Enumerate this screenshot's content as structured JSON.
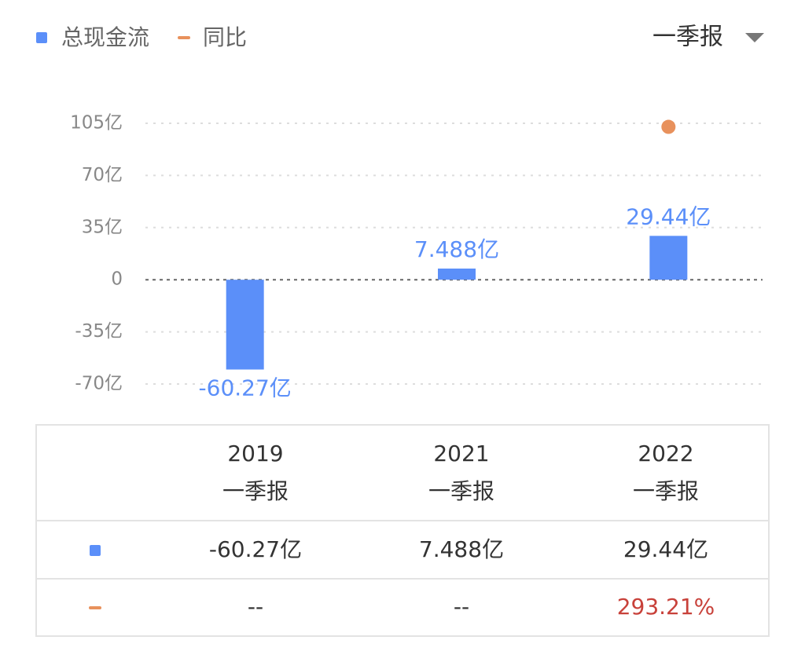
{
  "period": "一季报",
  "chart_data": {
    "type": "bar",
    "categories": [
      "2019",
      "2021",
      "2022"
    ],
    "series": [
      {
        "name": "总现金流",
        "type": "bar",
        "color": "#5b8ff9",
        "values": [
          -60.27,
          7.488,
          29.44
        ],
        "value_labels": [
          "-60.27亿",
          "7.488亿",
          "29.44亿"
        ]
      },
      {
        "name": "同比",
        "type": "scatter",
        "color": "#e8915c",
        "axis": "y2",
        "values": [
          null,
          null,
          293.21
        ]
      }
    ],
    "ylim": [
      -70,
      105
    ],
    "yticks": [
      {
        "value": -70,
        "label": "-70亿"
      },
      {
        "value": -35,
        "label": "-35亿"
      },
      0,
      {
        "value": 35,
        "label": "35亿"
      },
      {
        "value": 70,
        "label": "70亿"
      },
      {
        "value": 105,
        "label": "105亿"
      }
    ],
    "y2lim": [
      -200,
      300
    ],
    "grid": true,
    "legend": "top-left"
  },
  "table": {
    "rows": [
      [
        "-60.27亿",
        "7.488亿",
        "29.44亿"
      ],
      [
        "--",
        "--",
        {
          "value": 293.21,
          "label": "293.21%"
        }
      ]
    ]
  }
}
